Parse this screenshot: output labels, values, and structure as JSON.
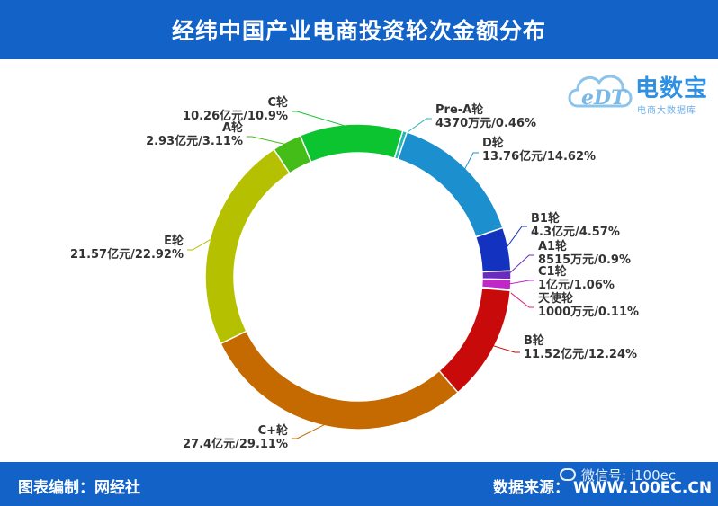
{
  "header": {
    "title": "经纬中国产业电商投资轮次金额分布"
  },
  "logo": {
    "main": "电数宝",
    "sub": "电商大数据库",
    "mark": "eDT"
  },
  "footer": {
    "left": "图表编制：网经社",
    "source_label": "数据来源：",
    "source_url": "WWW.100EC.CN",
    "wechat": "微信号: i100ec"
  },
  "chart_data": {
    "type": "pie",
    "style": "donut",
    "title": "经纬中国产业电商投资轮次金额分布",
    "slices": [
      {
        "label": "Pre-A轮",
        "value_text": "4370万元/0.46%",
        "percent": 0.46,
        "color": "#20b8b0"
      },
      {
        "label": "D轮",
        "value_text": "13.76亿元/14.62%",
        "percent": 14.62,
        "color": "#1c8fcf"
      },
      {
        "label": "B1轮",
        "value_text": "4.3亿元/4.57%",
        "percent": 4.57,
        "color": "#1432c0"
      },
      {
        "label": "A1轮",
        "value_text": "8515万元/0.9%",
        "percent": 0.9,
        "color": "#6a2cc0"
      },
      {
        "label": "C1轮",
        "value_text": "1亿元/1.06%",
        "percent": 1.06,
        "color": "#c026c8"
      },
      {
        "label": "天使轮",
        "value_text": "1000万元/0.11%",
        "percent": 0.11,
        "color": "#e0207a"
      },
      {
        "label": "B轮",
        "value_text": "11.52亿元/12.24%",
        "percent": 12.24,
        "color": "#c80a0a"
      },
      {
        "label": "C+轮",
        "value_text": "27.4亿元/29.11%",
        "percent": 29.11,
        "color": "#c46a00"
      },
      {
        "label": "E轮",
        "value_text": "21.57亿元/22.92%",
        "percent": 22.92,
        "color": "#b4c000"
      },
      {
        "label": "A轮",
        "value_text": "2.93亿元/3.11%",
        "percent": 3.11,
        "color": "#44bd18"
      },
      {
        "label": "C轮",
        "value_text": "10.26亿元/10.9%",
        "percent": 10.9,
        "color": "#0cc430"
      }
    ]
  }
}
